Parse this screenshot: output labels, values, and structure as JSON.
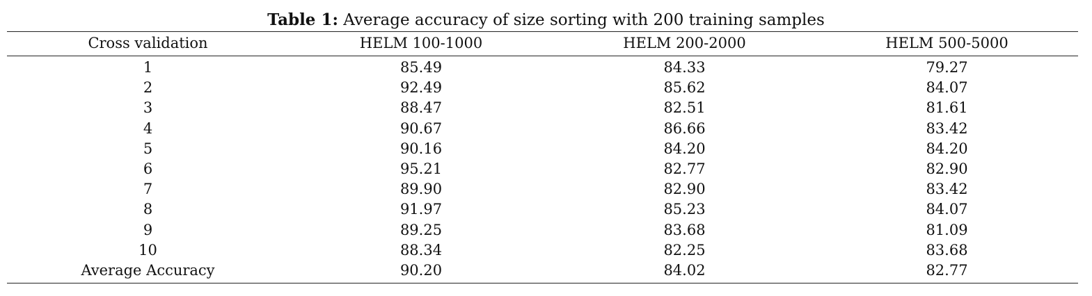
{
  "table": {
    "title": {
      "label": "Table 1:",
      "text": "Average accuracy of size sorting with 200 training samples"
    },
    "header": [
      "Cross validation",
      "HELM 100-1000",
      "HELM 200-2000",
      "HELM 500-5000"
    ],
    "rows": [
      [
        "1",
        "85.49",
        "84.33",
        "79.27"
      ],
      [
        "2",
        "92.49",
        "85.62",
        "84.07"
      ],
      [
        "3",
        "88.47",
        "82.51",
        "81.61"
      ],
      [
        "4",
        "90.67",
        "86.66",
        "83.42"
      ],
      [
        "5",
        "90.16",
        "84.20",
        "84.20"
      ],
      [
        "6",
        "95.21",
        "82.77",
        "82.90"
      ],
      [
        "7",
        "89.90",
        "82.90",
        "83.42"
      ],
      [
        "8",
        "91.97",
        "85.23",
        "84.07"
      ],
      [
        "9",
        "89.25",
        "83.68",
        "81.09"
      ],
      [
        "10",
        "88.34",
        "82.25",
        "83.68"
      ],
      [
        "Average Accuracy",
        "90.20",
        "84.02",
        "82.77"
      ]
    ]
  }
}
